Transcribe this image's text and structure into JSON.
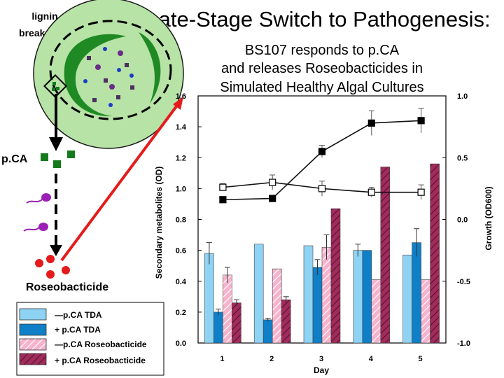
{
  "slide": {
    "title": "Late-Stage Switch to Pathogenesis:",
    "subtitle_lines": [
      "BS107 responds to p.CA",
      "and releases Roseobacticides in",
      "Simulated Healthy Algal Cultures"
    ]
  },
  "diagram": {
    "lignin_label_lines": [
      "lignin",
      "breakdown"
    ],
    "pca_label": "p.CA",
    "roseobacticide_label": "Roseobacticide",
    "colors": {
      "cell_fill": "#b7e3a6",
      "chloroplast": "#1f8a24",
      "pca_square": "#157a1c",
      "bacterium": "#9b1fb5",
      "roseobacticide": "#e51b1b",
      "arrow_red": "#e51b1b",
      "arrow_black": "#000000"
    }
  },
  "legend": {
    "items": [
      {
        "label": "—p.CA TDA",
        "color": "#8fd3f4",
        "pattern": "solid"
      },
      {
        "label": "+ p.CA TDA",
        "color": "#0f7fc7",
        "pattern": "solid"
      },
      {
        "label": "—p.CA Roseobacticide",
        "color": "#f7b2cc",
        "pattern": "hatch"
      },
      {
        "label": "+ p.CA Roseobacticide",
        "color": "#a02c5c",
        "pattern": "hatch"
      }
    ]
  },
  "chart_data": {
    "type": "bar",
    "categories": [
      "1",
      "2",
      "3",
      "4",
      "5"
    ],
    "xlabel": "Day",
    "ylabel": "Secondary metabolites (OD)",
    "ylim": [
      0,
      1.6
    ],
    "y_ticks": [
      "0.0",
      "0.2",
      "0.4",
      "0.6",
      "0.8",
      "1.0",
      "1.2",
      "1.4",
      "1.6"
    ],
    "y2label": "Growth (OD600)",
    "y2lim": [
      -1.0,
      1.0
    ],
    "y2_ticks": [
      "-1.0",
      "-0.5",
      "0.0",
      "0.5",
      "1.0"
    ],
    "series": [
      {
        "values": [
          0.58,
          0.64,
          0.63,
          0.6,
          0.57
        ],
        "err": [
          0.07,
          0.0,
          0.0,
          0.04,
          0.0
        ]
      },
      {
        "values": [
          0.2,
          0.15,
          0.49,
          0.6,
          0.65
        ],
        "err": [
          0.02,
          0.01,
          0.05,
          0.0,
          0.09
        ]
      },
      {
        "values": [
          0.44,
          0.48,
          0.62,
          0.41,
          0.41
        ],
        "err": [
          0.05,
          0.0,
          0.08,
          0.0,
          0.0
        ]
      },
      {
        "values": [
          0.26,
          0.28,
          0.87,
          1.14,
          1.16
        ],
        "err": [
          0.02,
          0.02,
          0.0,
          0.0,
          0.0
        ]
      }
    ],
    "lines": [
      {
        "marker": "open-square",
        "values": [
          0.26,
          0.3,
          0.25,
          0.22,
          0.22
        ],
        "err": [
          0.03,
          0.06,
          0.06,
          0.04,
          0.06
        ]
      },
      {
        "marker": "filled-square",
        "values": [
          0.16,
          0.17,
          0.55,
          0.78,
          0.8
        ],
        "err": [
          0.02,
          0.02,
          0.05,
          0.1,
          0.1
        ]
      }
    ]
  }
}
